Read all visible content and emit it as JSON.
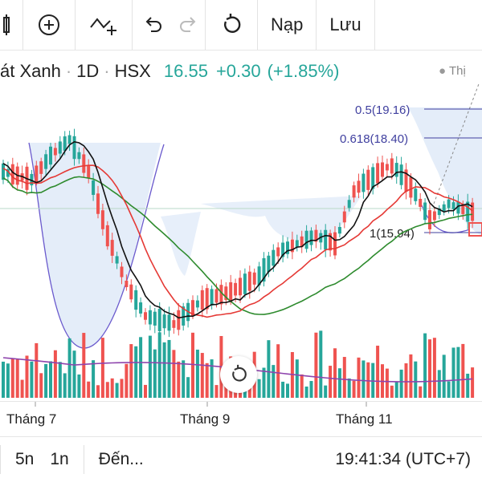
{
  "toolbar": {
    "load_label": "Nạp",
    "save_label": "Lưu"
  },
  "symbol": {
    "name": "át Xanh",
    "interval": "1D",
    "exchange": "HSX",
    "last": "16.55",
    "change": "+0.30",
    "change_pct": "(+1.85%)"
  },
  "chart_data": {
    "type": "candlestick",
    "x_labels": [
      "Tháng 7",
      "Tháng 9",
      "Tháng 11"
    ],
    "fib_levels": [
      {
        "label": "0.5(19.16)",
        "value": 19.16
      },
      {
        "label": "0.618(18.40)",
        "value": 18.4
      },
      {
        "label": "1(15.94)",
        "value": 15.94
      }
    ],
    "legend_hint": "Thị",
    "colors": {
      "up": "#26a69a",
      "down": "#ef5350",
      "ma_fast": "#000000",
      "ma_mid": "#e53935",
      "ma_slow": "#2e8b2e",
      "volume_ma": "#8e44ad",
      "fib": "#3f3f9f",
      "pattern_fill": "#dde8f8"
    }
  },
  "bottom": {
    "range_5y": "5n",
    "range_1y": "1n",
    "goto": "Đến...",
    "clock": "19:41:34 (UTC+7)"
  },
  "icons": [
    "bars-icon",
    "add-circle-icon",
    "add-indicator-icon",
    "undo-icon",
    "redo-icon",
    "reload-icon",
    "reset-chart-icon"
  ]
}
